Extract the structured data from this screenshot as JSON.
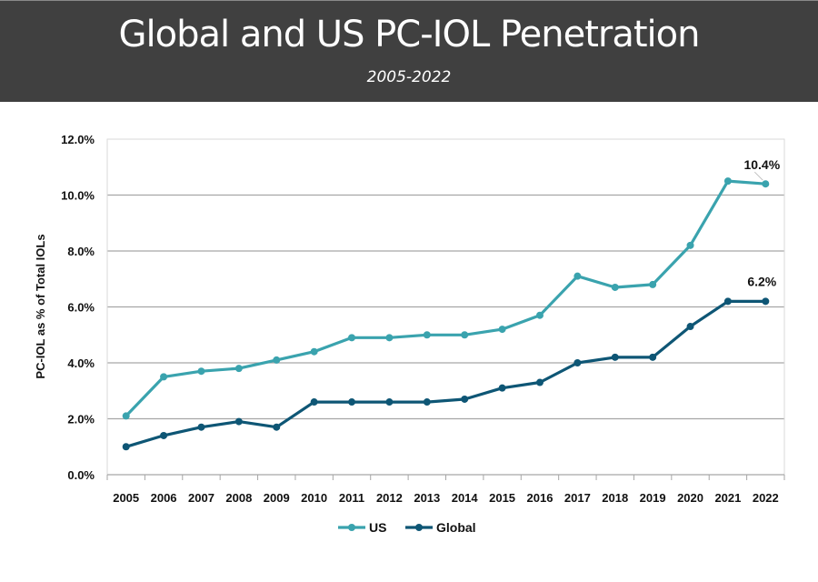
{
  "header": {
    "title": "Global and US PC-IOL Penetration",
    "subtitle": "2005-2022"
  },
  "chart_data": {
    "type": "line",
    "title": "Global and US PC-IOL Penetration",
    "subtitle": "2005-2022",
    "xlabel": "",
    "ylabel": "PC-IOL as % of Total IOLs",
    "ylim": [
      0,
      12
    ],
    "yticks": [
      0,
      2,
      4,
      6,
      8,
      10,
      12
    ],
    "ytick_labels": [
      "0.0%",
      "2.0%",
      "4.0%",
      "6.0%",
      "8.0%",
      "10.0%",
      "12.0%"
    ],
    "grid": "horizontal",
    "legend_position": "bottom",
    "categories": [
      "2005",
      "2006",
      "2007",
      "2008",
      "2009",
      "2010",
      "2011",
      "2012",
      "2013",
      "2014",
      "2015",
      "2016",
      "2017",
      "2018",
      "2019",
      "2020",
      "2021",
      "2022"
    ],
    "series": [
      {
        "name": "US",
        "color": "#3AA3AE",
        "values": [
          2.1,
          3.5,
          3.7,
          3.8,
          4.1,
          4.4,
          4.9,
          4.9,
          5.0,
          5.0,
          5.2,
          5.7,
          7.1,
          6.7,
          6.8,
          8.2,
          10.5,
          10.4
        ],
        "end_label": "10.4%"
      },
      {
        "name": "Global",
        "color": "#0E5675",
        "values": [
          1.0,
          1.4,
          1.7,
          1.9,
          1.7,
          2.6,
          2.6,
          2.6,
          2.6,
          2.7,
          3.1,
          3.3,
          4.0,
          4.2,
          4.2,
          5.3,
          6.2,
          6.2
        ],
        "end_label": "6.2%"
      }
    ]
  }
}
